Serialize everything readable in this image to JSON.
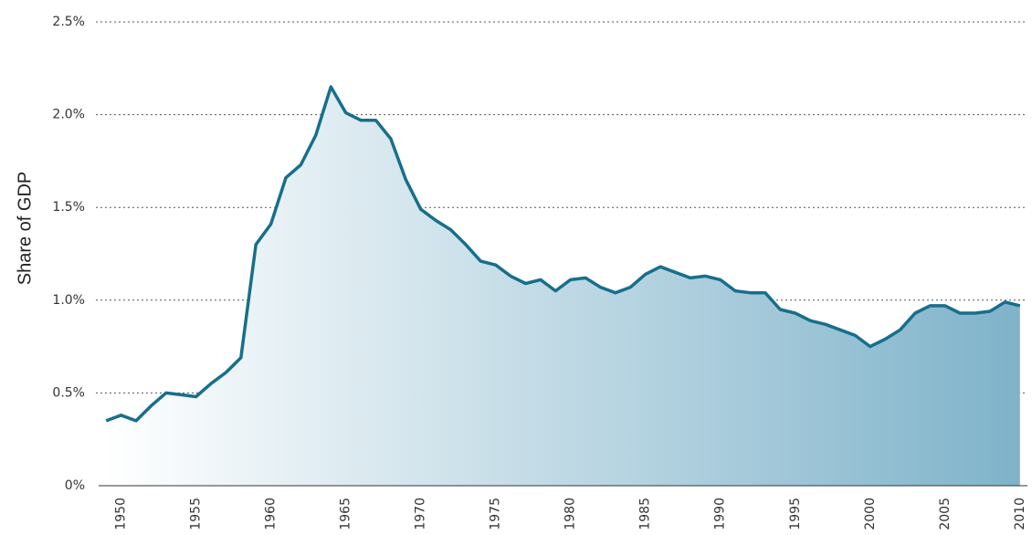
{
  "chart_data": {
    "type": "area",
    "y_label": "Share of GDP",
    "x": [
      1949,
      1950,
      1951,
      1952,
      1953,
      1954,
      1955,
      1956,
      1957,
      1958,
      1959,
      1960,
      1961,
      1962,
      1963,
      1964,
      1965,
      1966,
      1967,
      1968,
      1969,
      1970,
      1971,
      1972,
      1973,
      1974,
      1975,
      1976,
      1977,
      1978,
      1979,
      1980,
      1981,
      1982,
      1983,
      1984,
      1985,
      1986,
      1987,
      1988,
      1989,
      1990,
      1991,
      1992,
      1993,
      1994,
      1995,
      1996,
      1997,
      1998,
      1999,
      2000,
      2001,
      2002,
      2003,
      2004,
      2005,
      2006,
      2007,
      2008,
      2009,
      2010
    ],
    "values": [
      0.35,
      0.38,
      0.35,
      0.43,
      0.5,
      0.49,
      0.48,
      0.55,
      0.61,
      0.69,
      1.3,
      1.41,
      1.66,
      1.73,
      1.89,
      2.15,
      2.01,
      1.97,
      1.97,
      1.87,
      1.65,
      1.49,
      1.43,
      1.38,
      1.3,
      1.21,
      1.19,
      1.13,
      1.09,
      1.11,
      1.05,
      1.11,
      1.12,
      1.07,
      1.04,
      1.07,
      1.14,
      1.18,
      1.15,
      1.12,
      1.13,
      1.11,
      1.05,
      1.04,
      1.04,
      0.95,
      0.93,
      0.89,
      0.87,
      0.84,
      0.81,
      0.75,
      0.79,
      0.84,
      0.93,
      0.97,
      0.97,
      0.93,
      0.93,
      0.94,
      0.99,
      0.97
    ],
    "color": "#176f8b",
    "fill_colors": [
      "#ffffff",
      "#7fb3ca"
    ],
    "xlim": [
      1948.5,
      2010.5
    ],
    "xticks": [
      1950,
      1955,
      1960,
      1965,
      1970,
      1975,
      1980,
      1985,
      1990,
      1995,
      2000,
      2005,
      2010
    ],
    "ylim": [
      0,
      2.5
    ],
    "yticks": [
      {
        "value": 0,
        "label": "0%"
      },
      {
        "value": 0.5,
        "label": "0.5%"
      },
      {
        "value": 1,
        "label": "1.0%"
      },
      {
        "value": 1.5,
        "label": "1.5%"
      },
      {
        "value": 2,
        "label": "2.0%"
      },
      {
        "value": 2.5,
        "label": "2.5%"
      }
    ],
    "grid": true
  }
}
